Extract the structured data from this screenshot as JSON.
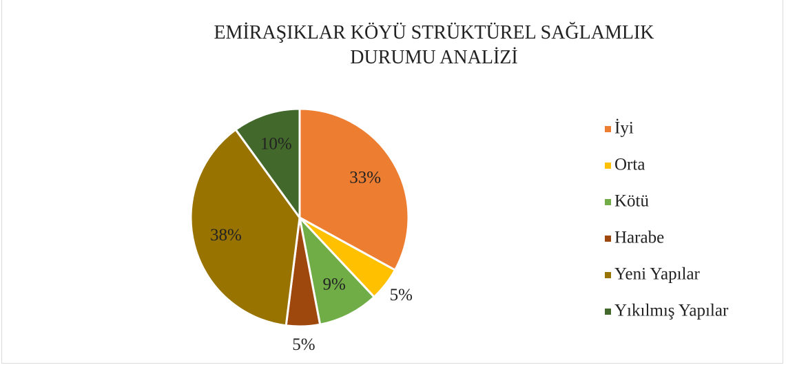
{
  "chart_data": {
    "type": "pie",
    "title": "EMİRAŞIKLAR KÖYÜ STRÜKTÜREL SAĞLAMLIK DURUMU ANALİZİ",
    "categories": [
      "İyi",
      "Orta",
      "Kötü",
      "Harabe",
      "Yeni Yapılar",
      "Yıkılmış Yapılar"
    ],
    "values": [
      33,
      5,
      9,
      5,
      38,
      10
    ],
    "value_labels": [
      "33%",
      "5%",
      "9%",
      "5%",
      "38%",
      "10%"
    ],
    "colors": [
      "#ED7D31",
      "#FFC000",
      "#70AD47",
      "#9E480E",
      "#997300",
      "#43682B"
    ],
    "legend": "right"
  }
}
